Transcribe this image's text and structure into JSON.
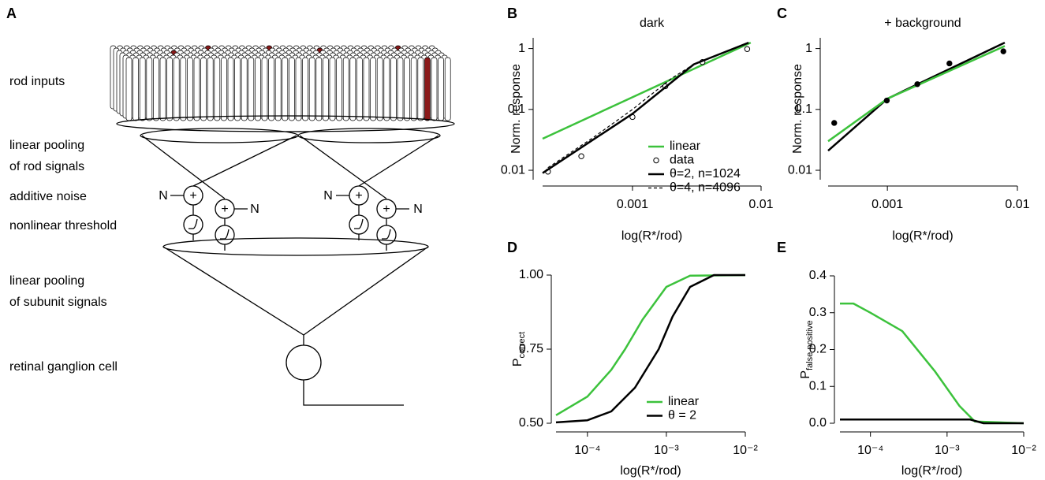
{
  "diagram": {
    "panel": "A",
    "labels": [
      "rod inputs",
      "linear pooling",
      "of rod signals",
      "additive noise",
      "nonlinear threshold",
      "linear pooling",
      "of subunit signals",
      "retinal ganglion cell"
    ],
    "noise": [
      "N",
      "N",
      "N",
      "N"
    ],
    "sum": [
      "+",
      "+",
      "+",
      "+"
    ]
  },
  "chart_data": [
    {
      "type": "line",
      "panel": "B",
      "title": "dark",
      "xlabel": "log(R*/rod)",
      "ylabel": "Norm. response",
      "xscale": "log",
      "yscale": "log",
      "xlim": [
        0.0002,
        0.01
      ],
      "ylim": [
        0.007,
        1.5
      ],
      "xticks": [
        0.001,
        0.01
      ],
      "yticks": [
        0.01,
        0.1,
        1
      ],
      "series": [
        {
          "name": "linear",
          "color": "#3cc23c",
          "x": [
            0.0002,
            0.0083
          ],
          "values": [
            0.033,
            1.25
          ]
        },
        {
          "name": "data",
          "color": "#000000",
          "marker": "open",
          "x": [
            0.00022,
            0.0004,
            0.001,
            0.0018,
            0.0035,
            0.0078
          ],
          "values": [
            0.0095,
            0.017,
            0.075,
            0.24,
            0.6,
            0.98
          ]
        },
        {
          "name": "θ=2, n=1024",
          "color": "#000000",
          "x": [
            0.0002,
            0.001,
            0.003,
            0.008
          ],
          "values": [
            0.009,
            0.085,
            0.55,
            1.25
          ]
        },
        {
          "name": "θ=4, n=4096",
          "color": "#000000",
          "dash": true,
          "x": [
            0.00022,
            0.0005,
            0.001,
            0.002,
            0.003
          ],
          "values": [
            0.011,
            0.035,
            0.1,
            0.32,
            0.55
          ]
        }
      ]
    },
    {
      "type": "line",
      "panel": "C",
      "title": "+ background",
      "xlabel": "log(R*/rod)",
      "ylabel": "Norm. response",
      "xscale": "log",
      "yscale": "log",
      "xlim": [
        0.00035,
        0.01
      ],
      "ylim": [
        0.007,
        1.5
      ],
      "xticks": [
        0.001,
        0.01
      ],
      "yticks": [
        0.01,
        0.1,
        1
      ],
      "series": [
        {
          "color": "#000000",
          "x": [
            0.00035,
            0.001,
            0.008
          ],
          "values": [
            0.021,
            0.15,
            1.25
          ]
        },
        {
          "color": "#3cc23c",
          "x": [
            0.00035,
            0.001,
            0.008
          ],
          "values": [
            0.03,
            0.15,
            1.1
          ]
        },
        {
          "color": "#000000",
          "marker": "filled",
          "x": [
            0.00039,
            0.00099,
            0.0017,
            0.003,
            0.0078
          ],
          "values": [
            0.06,
            0.14,
            0.26,
            0.57,
            0.9
          ]
        }
      ]
    },
    {
      "type": "line",
      "panel": "D",
      "xlabel": "log(R*/rod)",
      "ylabel": "P",
      "ylabel_sub": "correct",
      "xscale": "log",
      "xlim": [
        4e-05,
        0.01
      ],
      "ylim": [
        0.5,
        1.0
      ],
      "xticks": [
        {
          "value": 0.0001,
          "label": "10⁻⁴"
        },
        {
          "value": 0.001,
          "label": "10⁻³"
        },
        {
          "value": 0.01,
          "label": "10⁻²"
        }
      ],
      "yticks": [
        {
          "value": 0.5,
          "label": "0.50"
        },
        0.75,
        {
          "value": 1.0,
          "label": "1.00"
        }
      ],
      "series": [
        {
          "name": "linear",
          "color": "#3cc23c",
          "x": [
            4e-05,
            0.0001,
            0.0002,
            0.0003,
            0.0005,
            0.001,
            0.002,
            0.01
          ],
          "values": [
            0.527,
            0.59,
            0.68,
            0.75,
            0.85,
            0.96,
            0.998,
            1.0
          ]
        },
        {
          "name": "θ = 2",
          "color": "#000000",
          "x": [
            4e-05,
            0.0001,
            0.0002,
            0.0004,
            0.0008,
            0.0012,
            0.002,
            0.004,
            0.01
          ],
          "values": [
            0.503,
            0.51,
            0.54,
            0.62,
            0.75,
            0.86,
            0.96,
            1.0,
            1.0
          ]
        }
      ]
    },
    {
      "type": "line",
      "panel": "E",
      "xlabel": "log(R*/rod)",
      "ylabel": "P",
      "ylabel_sub": "false positive",
      "xscale": "log",
      "xlim": [
        4e-05,
        0.01
      ],
      "ylim": [
        0,
        0.4
      ],
      "xticks": [
        {
          "value": 0.0001,
          "label": "10⁻⁴"
        },
        {
          "value": 0.001,
          "label": "10⁻³"
        },
        {
          "value": 0.01,
          "label": "10⁻²"
        }
      ],
      "yticks": [
        {
          "value": 0,
          "label": "0.0"
        },
        0.1,
        0.2,
        0.3,
        0.4
      ],
      "series": [
        {
          "color": "#3cc23c",
          "x": [
            4e-05,
            6e-05,
            0.0001,
            0.00026,
            0.0007,
            0.00145,
            0.0023,
            0.01
          ],
          "values": [
            0.325,
            0.325,
            0.3,
            0.25,
            0.14,
            0.047,
            0.005,
            0
          ]
        },
        {
          "color": "#000000",
          "x": [
            4e-05,
            0.002,
            0.003,
            0.01
          ],
          "values": [
            0.01,
            0.01,
            0,
            0
          ]
        }
      ]
    }
  ]
}
